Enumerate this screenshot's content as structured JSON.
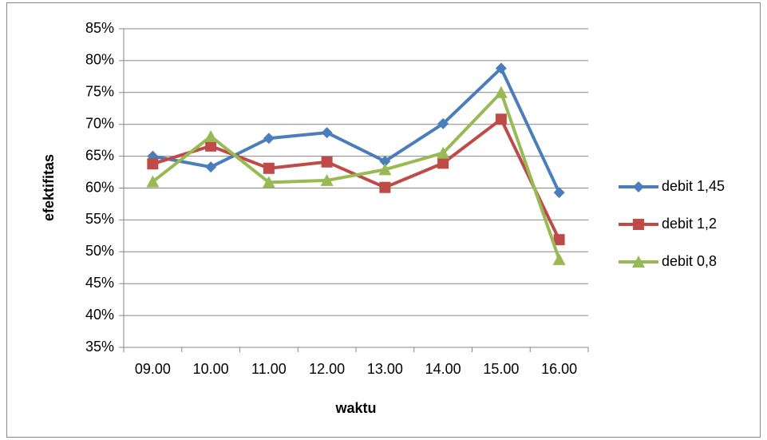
{
  "chart_data": {
    "type": "line",
    "xlabel": "waktu",
    "ylabel": "efektifitas",
    "categories": [
      "09.00",
      "10.00",
      "11.00",
      "12.00",
      "13.00",
      "14.00",
      "15.00",
      "16.00"
    ],
    "series": [
      {
        "name": "debit 1,45",
        "color": "#4a7ebb",
        "marker": "diamond",
        "values": [
          65.0,
          63.3,
          67.8,
          68.7,
          64.2,
          70.1,
          78.8,
          59.3
        ]
      },
      {
        "name": "debit 1,2",
        "color": "#be4b48",
        "marker": "square",
        "values": [
          63.8,
          66.6,
          63.1,
          64.1,
          60.1,
          63.9,
          70.8,
          51.9
        ]
      },
      {
        "name": "debit 0,8",
        "color": "#98b954",
        "marker": "triangle",
        "values": [
          61.0,
          68.1,
          60.9,
          61.2,
          62.9,
          65.5,
          75.0,
          48.8
        ]
      }
    ],
    "ylim": [
      35,
      85
    ],
    "yticks": [
      {
        "value": 35,
        "label": "35%"
      },
      {
        "value": 40,
        "label": "40%"
      },
      {
        "value": 45,
        "label": "45%"
      },
      {
        "value": 50,
        "label": "50%"
      },
      {
        "value": 55,
        "label": "55%"
      },
      {
        "value": 60,
        "label": "60%"
      },
      {
        "value": 65,
        "label": "65%"
      },
      {
        "value": 70,
        "label": "70%"
      },
      {
        "value": 75,
        "label": "75%"
      },
      {
        "value": 80,
        "label": "80%"
      },
      {
        "value": 85,
        "label": "85%"
      }
    ],
    "grid": true,
    "legend": "right"
  }
}
